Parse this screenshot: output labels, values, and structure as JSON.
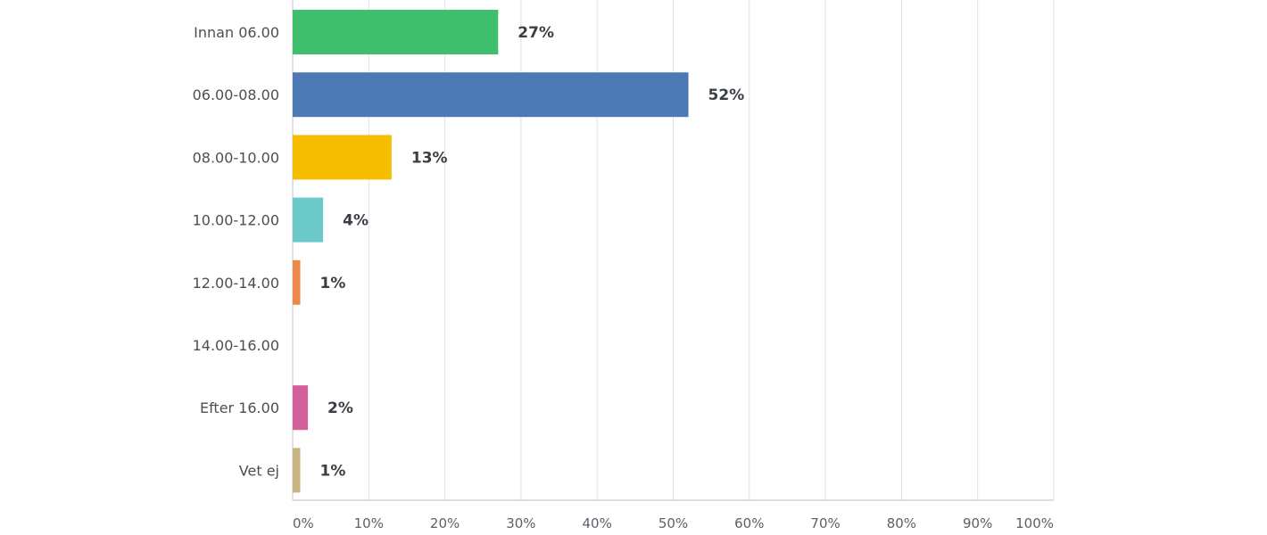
{
  "chart_data": {
    "type": "bar",
    "orientation": "horizontal",
    "categories": [
      "Innan 06.00",
      "06.00-08.00",
      "08.00-10.00",
      "10.00-12.00",
      "12.00-14.00",
      "14.00-16.00",
      "Efter 16.00",
      "Vet ej"
    ],
    "values": [
      27,
      52,
      13,
      4,
      1,
      0,
      2,
      1
    ],
    "value_labels": [
      "27%",
      "52%",
      "13%",
      "4%",
      "1%",
      "",
      "2%",
      "1%"
    ],
    "colors": [
      "#3fbf6b",
      "#4d7ab5",
      "#f5bf00",
      "#6cc9c9",
      "#ec8a4c",
      "#9b73b8",
      "#d2609c",
      "#c7b47e"
    ],
    "xlim": [
      0,
      100
    ],
    "x_ticks": [
      0,
      10,
      20,
      30,
      40,
      50,
      60,
      70,
      80,
      90,
      100
    ],
    "x_tick_labels": [
      "0%",
      "10%",
      "20%",
      "30%",
      "40%",
      "50%",
      "60%",
      "70%",
      "80%",
      "90%",
      "100%"
    ],
    "grid": true,
    "title": "",
    "xlabel": "",
    "ylabel": ""
  }
}
